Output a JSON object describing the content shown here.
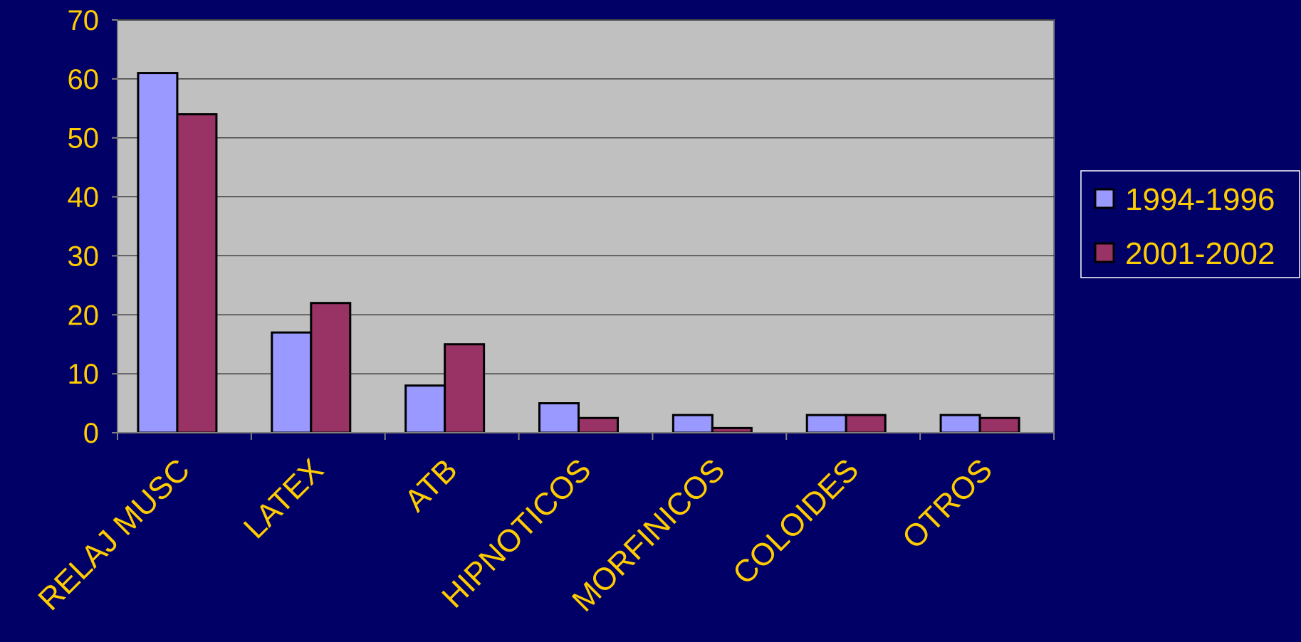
{
  "chart_data": {
    "type": "bar",
    "categories": [
      "RELAJ MUSC",
      "LATEX",
      "ATB",
      "HIPNOTICOS",
      "MORFINICOS",
      "COLOIDES",
      "OTROS"
    ],
    "series": [
      {
        "name": "1994-1996",
        "values": [
          61,
          17,
          8,
          5,
          3,
          3,
          3
        ]
      },
      {
        "name": "2001-2002",
        "values": [
          54,
          22,
          15,
          2.5,
          0.8,
          3,
          2.5
        ]
      }
    ],
    "ylim": [
      0,
      70
    ],
    "yticks": [
      0,
      10,
      20,
      30,
      40,
      50,
      60,
      70
    ],
    "grid": true,
    "legend_position": "right"
  },
  "colors": {
    "background": "#000066",
    "plot_area": "#C0C0C0",
    "text": "#FFCC00",
    "series": [
      "#9999FF",
      "#993366"
    ],
    "gridline": "#000000",
    "bar_outline": "#000000",
    "legend_border": "#FFFFFF"
  }
}
